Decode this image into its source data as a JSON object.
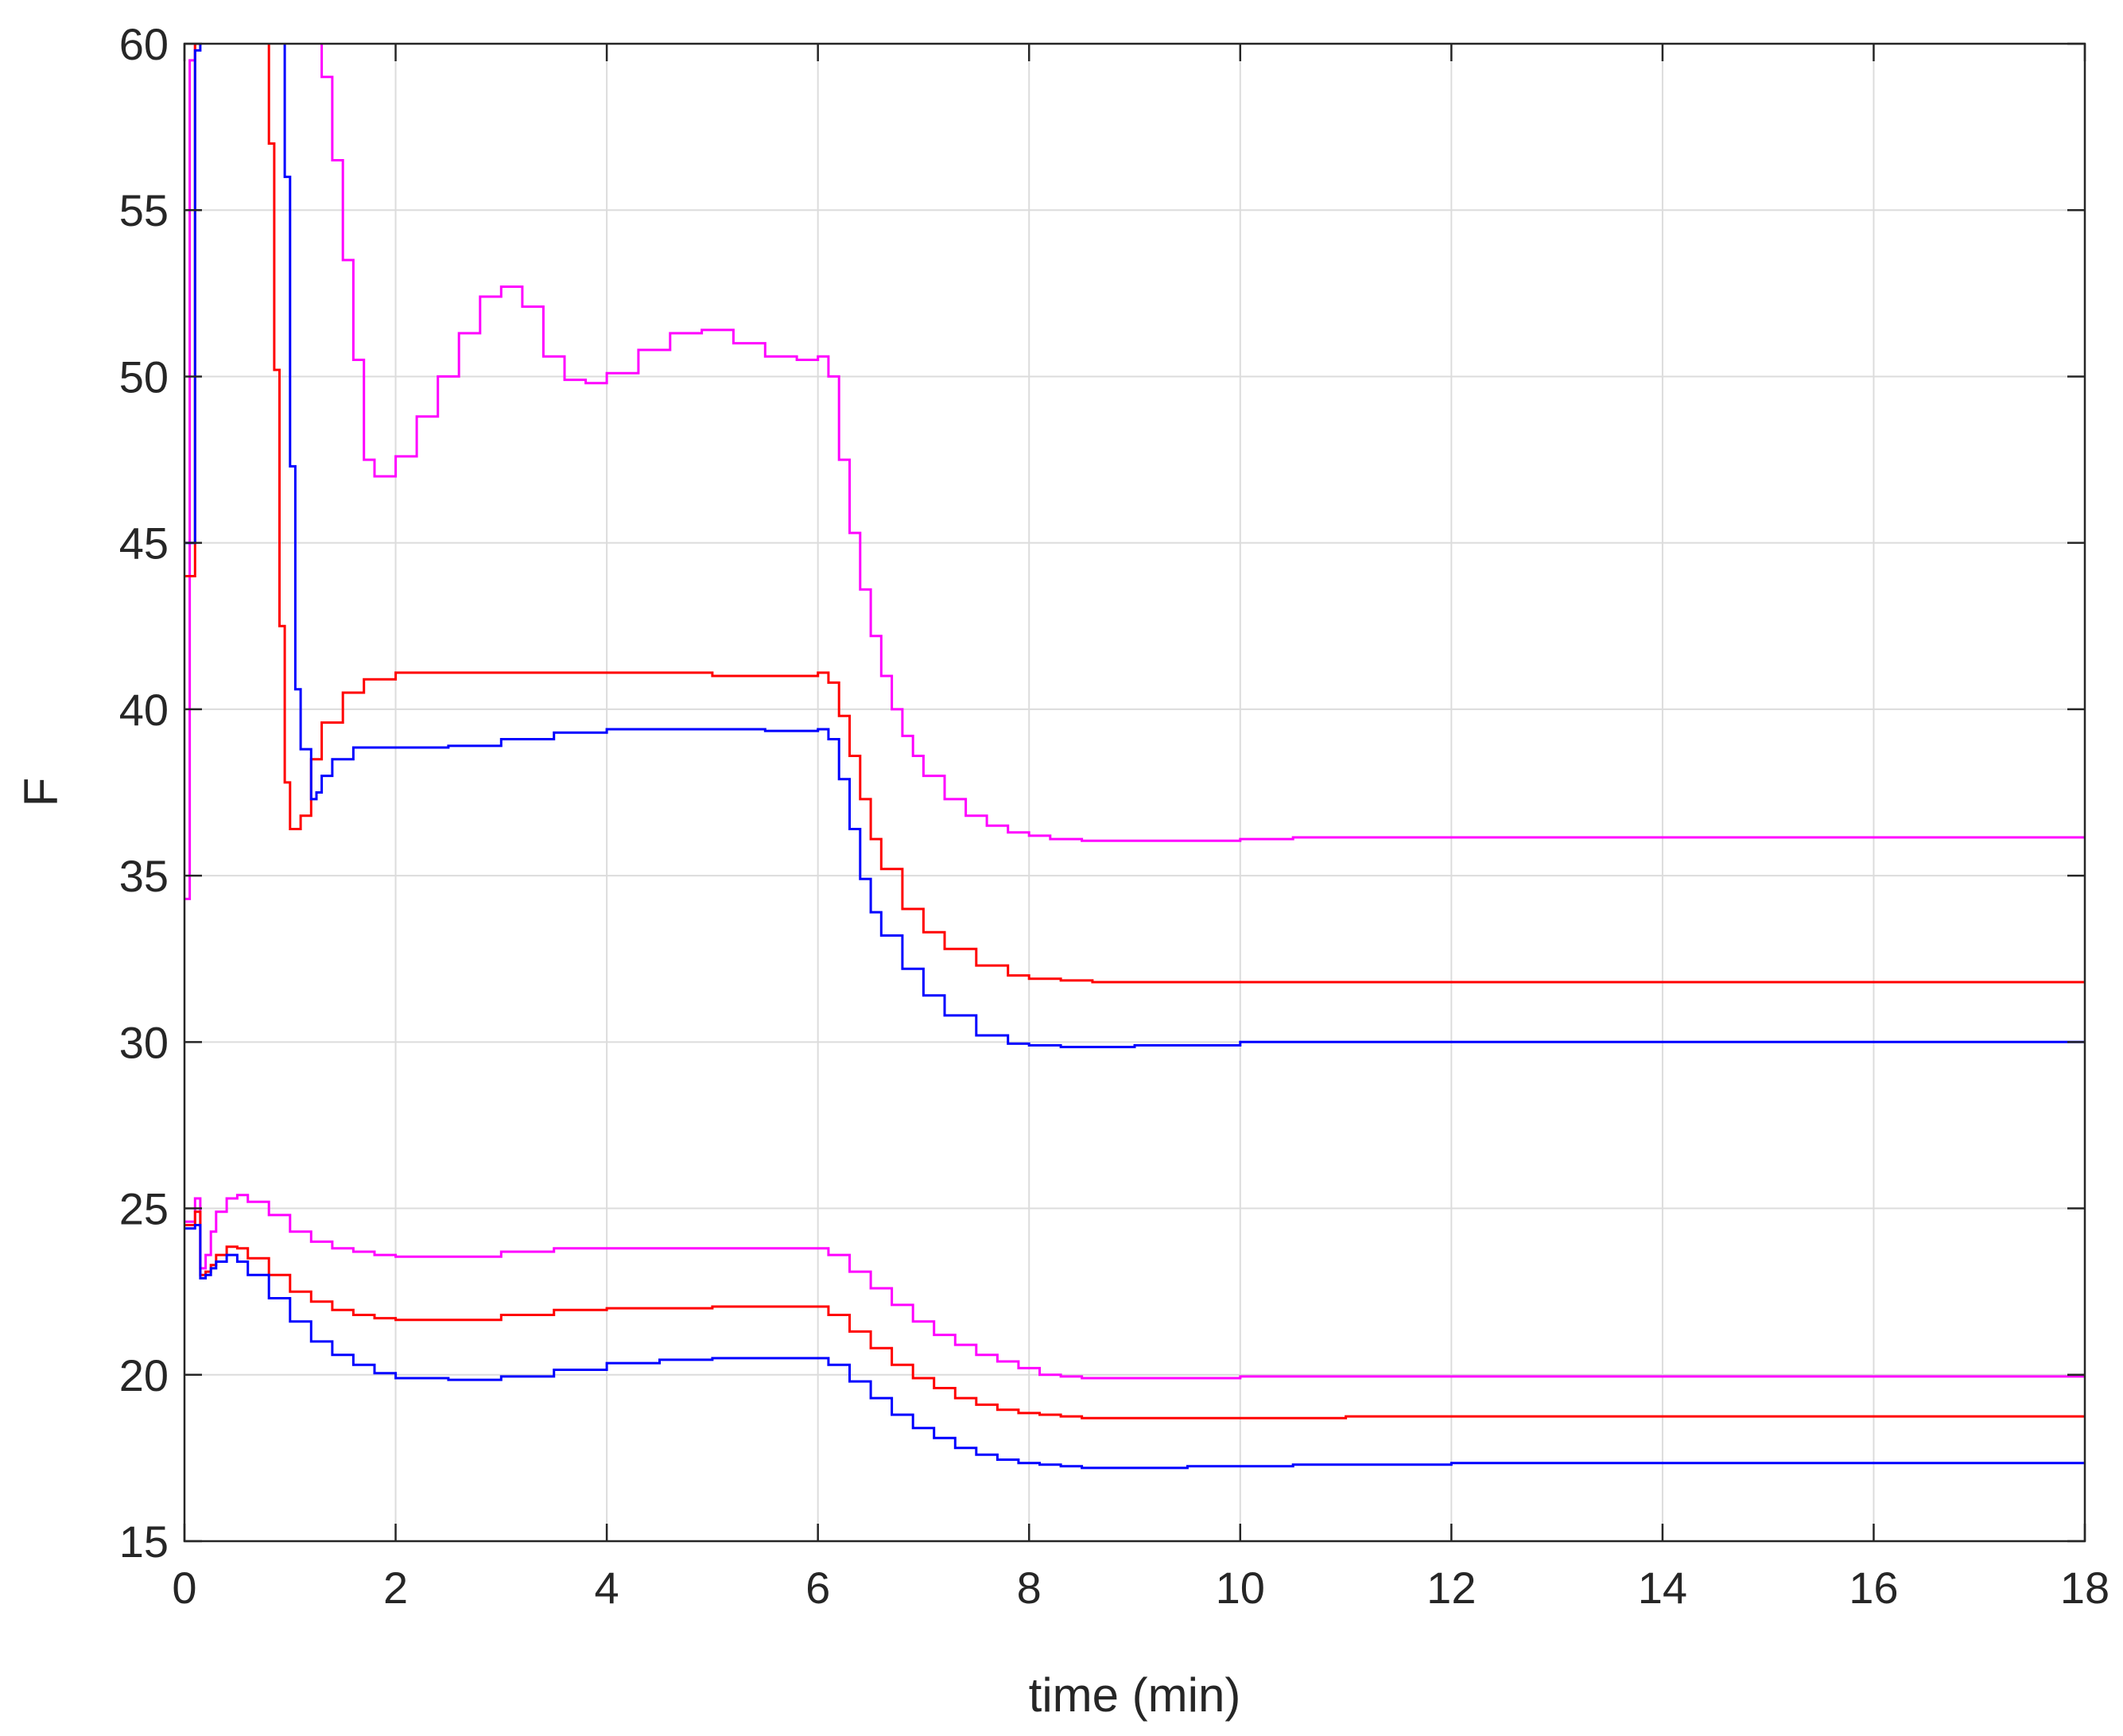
{
  "chart_data": {
    "type": "line",
    "title": "",
    "xlabel": "time (min)",
    "ylabel": "F",
    "xlim": [
      0,
      18
    ],
    "ylim": [
      15,
      60
    ],
    "xticks": [
      0,
      2,
      4,
      6,
      8,
      10,
      12,
      14,
      16,
      18
    ],
    "yticks": [
      15,
      20,
      25,
      30,
      35,
      40,
      45,
      50,
      55,
      60
    ],
    "grid": true,
    "step": true,
    "series": [
      {
        "color": "#ff00ff",
        "x": [
          0,
          0.05,
          0.1,
          0.15,
          0.2,
          0.3,
          0.4,
          0.6,
          0.8,
          1.0,
          1.2,
          1.3,
          1.4,
          1.5,
          1.6,
          1.7,
          1.8,
          2.0,
          2.2,
          2.4,
          2.6,
          2.8,
          3.0,
          3.2,
          3.4,
          3.6,
          3.8,
          4.0,
          4.3,
          4.6,
          4.9,
          5.2,
          5.5,
          5.8,
          6.0,
          6.1,
          6.2,
          6.3,
          6.4,
          6.5,
          6.6,
          6.7,
          6.8,
          6.9,
          7.0,
          7.2,
          7.4,
          7.6,
          7.8,
          8.0,
          8.2,
          8.4,
          8.5,
          9.0,
          10.0,
          10.5,
          12.0,
          14.0,
          16.0,
          18.0
        ],
        "y": [
          34.3,
          59.5,
          62,
          62,
          62,
          62,
          62,
          62,
          62,
          62,
          62,
          59,
          56.5,
          53.5,
          50.5,
          47.5,
          47.0,
          47.6,
          48.8,
          50.0,
          51.3,
          52.4,
          52.7,
          52.1,
          50.6,
          49.9,
          49.8,
          50.1,
          50.8,
          51.3,
          51.4,
          51.0,
          50.6,
          50.5,
          50.6,
          50.0,
          47.5,
          45.3,
          43.6,
          42.2,
          41.0,
          40.0,
          39.2,
          38.6,
          38.0,
          37.3,
          36.8,
          36.5,
          36.3,
          36.2,
          36.1,
          36.1,
          36.05,
          36.05,
          36.1,
          36.15,
          36.15,
          36.15,
          36.15,
          36.15
        ]
      },
      {
        "color": "#ff0000",
        "x": [
          0,
          0.05,
          0.1,
          0.15,
          0.2,
          0.3,
          0.5,
          0.8,
          0.85,
          0.9,
          0.95,
          1.0,
          1.1,
          1.2,
          1.3,
          1.5,
          1.7,
          2.0,
          3.0,
          4.0,
          5.0,
          6.0,
          6.1,
          6.2,
          6.3,
          6.4,
          6.5,
          6.6,
          6.8,
          7.0,
          7.2,
          7.5,
          7.8,
          8.0,
          8.3,
          8.6,
          9.0,
          10.0,
          12.0,
          14.0,
          16.0,
          18.0
        ],
        "y": [
          44,
          44,
          60,
          62,
          62,
          62,
          62,
          57,
          50.2,
          42.5,
          37.8,
          36.4,
          36.8,
          38.5,
          39.6,
          40.5,
          40.9,
          41.1,
          41.1,
          41.1,
          41.0,
          41.1,
          40.8,
          39.8,
          38.6,
          37.3,
          36.1,
          35.2,
          34.0,
          33.3,
          32.8,
          32.3,
          32.0,
          31.9,
          31.85,
          31.8,
          31.8,
          31.8,
          31.8,
          31.8,
          31.8,
          31.8
        ]
      },
      {
        "color": "#0000ff",
        "x": [
          0,
          0.05,
          0.1,
          0.15,
          0.2,
          0.4,
          0.6,
          0.8,
          0.9,
          0.95,
          1.0,
          1.05,
          1.1,
          1.2,
          1.25,
          1.3,
          1.4,
          1.6,
          2.0,
          2.5,
          3.0,
          3.5,
          4.0,
          5.0,
          5.5,
          6.0,
          6.1,
          6.2,
          6.3,
          6.4,
          6.5,
          6.6,
          6.8,
          7.0,
          7.2,
          7.5,
          7.8,
          8.0,
          8.3,
          8.5,
          9.0,
          10.0,
          12.0,
          14.0,
          16.0,
          18.0
        ],
        "y": [
          45,
          45,
          59.8,
          62,
          62,
          62,
          62,
          62,
          62,
          56,
          47.3,
          40.6,
          38.8,
          37.3,
          37.5,
          38.0,
          38.5,
          38.85,
          38.85,
          38.9,
          39.1,
          39.3,
          39.4,
          39.4,
          39.35,
          39.4,
          39.1,
          37.9,
          36.4,
          34.9,
          33.9,
          33.2,
          32.2,
          31.4,
          30.8,
          30.2,
          29.95,
          29.9,
          29.85,
          29.85,
          29.9,
          30.0,
          30.0,
          30.0,
          30.0,
          30.0
        ]
      },
      {
        "color": "#ff00ff",
        "x": [
          0,
          0.05,
          0.1,
          0.15,
          0.2,
          0.25,
          0.3,
          0.4,
          0.5,
          0.6,
          0.8,
          1.0,
          1.2,
          1.4,
          1.6,
          1.8,
          2.0,
          2.5,
          3.0,
          3.5,
          4.0,
          5.0,
          6.0,
          6.1,
          6.3,
          6.5,
          6.7,
          6.9,
          7.1,
          7.3,
          7.5,
          7.7,
          7.9,
          8.1,
          8.3,
          8.5,
          9.0,
          9.5,
          10.0,
          12.0,
          14.0,
          16.0,
          18.0
        ],
        "y": [
          24.6,
          24.6,
          25.3,
          23.2,
          23.6,
          24.3,
          24.9,
          25.3,
          25.4,
          25.2,
          24.8,
          24.3,
          24.0,
          23.8,
          23.7,
          23.6,
          23.55,
          23.55,
          23.7,
          23.8,
          23.8,
          23.8,
          23.8,
          23.6,
          23.1,
          22.6,
          22.1,
          21.6,
          21.2,
          20.9,
          20.6,
          20.4,
          20.2,
          20.0,
          19.95,
          19.9,
          19.9,
          19.9,
          19.95,
          19.95,
          19.95,
          19.95,
          20.0
        ]
      },
      {
        "color": "#ff0000",
        "x": [
          0,
          0.05,
          0.1,
          0.15,
          0.2,
          0.25,
          0.3,
          0.4,
          0.5,
          0.6,
          0.8,
          1.0,
          1.2,
          1.4,
          1.6,
          1.8,
          2.0,
          2.5,
          3.0,
          3.5,
          4.0,
          5.0,
          6.0,
          6.1,
          6.3,
          6.5,
          6.7,
          6.9,
          7.1,
          7.3,
          7.5,
          7.7,
          7.9,
          8.1,
          8.3,
          8.5,
          9.0,
          10.0,
          11.0,
          12.0,
          14.0,
          16.0,
          18.0
        ],
        "y": [
          24.5,
          24.5,
          24.9,
          23.0,
          23.1,
          23.3,
          23.6,
          23.85,
          23.8,
          23.5,
          23.0,
          22.5,
          22.2,
          21.95,
          21.8,
          21.7,
          21.65,
          21.65,
          21.8,
          21.95,
          22.0,
          22.05,
          22.05,
          21.8,
          21.3,
          20.8,
          20.3,
          19.9,
          19.6,
          19.3,
          19.1,
          18.95,
          18.85,
          18.8,
          18.75,
          18.7,
          18.7,
          18.7,
          18.75,
          18.75,
          18.75,
          18.75,
          18.75
        ]
      },
      {
        "color": "#0000ff",
        "x": [
          0,
          0.05,
          0.1,
          0.15,
          0.2,
          0.25,
          0.3,
          0.4,
          0.5,
          0.6,
          0.8,
          1.0,
          1.2,
          1.4,
          1.6,
          1.8,
          2.0,
          2.5,
          3.0,
          3.5,
          4.0,
          4.5,
          5.0,
          6.0,
          6.1,
          6.3,
          6.5,
          6.7,
          6.9,
          7.1,
          7.3,
          7.5,
          7.7,
          7.9,
          8.1,
          8.3,
          8.5,
          9.0,
          9.5,
          10.0,
          10.5,
          12.0,
          14.0,
          16.0,
          18.0
        ],
        "y": [
          24.4,
          24.4,
          24.5,
          22.9,
          23.0,
          23.2,
          23.4,
          23.6,
          23.4,
          23.0,
          22.3,
          21.6,
          21.0,
          20.6,
          20.3,
          20.05,
          19.9,
          19.85,
          19.95,
          20.15,
          20.35,
          20.45,
          20.5,
          20.5,
          20.3,
          19.8,
          19.3,
          18.8,
          18.4,
          18.1,
          17.8,
          17.6,
          17.45,
          17.35,
          17.3,
          17.25,
          17.2,
          17.2,
          17.25,
          17.25,
          17.3,
          17.35,
          17.35,
          17.35,
          17.35
        ]
      }
    ]
  }
}
